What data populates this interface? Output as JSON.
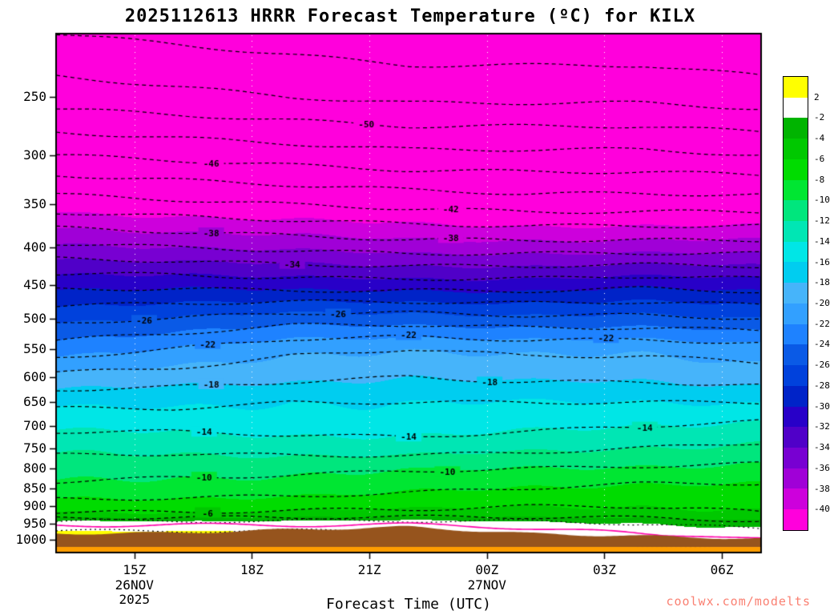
{
  "header": {
    "title": "2025112613 HRRR Forecast Temperature (ºC) for KILX"
  },
  "watermark": {
    "text": "coolwx.com/modelts",
    "color": "#fa8072"
  },
  "chart_data": {
    "type": "filled_contour",
    "title": "2025112613 HRRR Forecast Temperature (ºC) for KILX",
    "xlabel": "Forecast Time (UTC)",
    "x_axis": {
      "range": [
        0,
        18
      ],
      "ticks": [
        {
          "hour": 2,
          "label": "15Z",
          "sub": [
            "26NOV",
            "2025"
          ]
        },
        {
          "hour": 5,
          "label": "18Z",
          "sub": []
        },
        {
          "hour": 8,
          "label": "21Z",
          "sub": []
        },
        {
          "hour": 11,
          "label": "00Z",
          "sub": [
            "27NOV"
          ]
        },
        {
          "hour": 14,
          "label": "03Z",
          "sub": []
        },
        {
          "hour": 17,
          "label": "06Z",
          "sub": []
        }
      ]
    },
    "y_axis": {
      "unit": "hPa",
      "scale": "log",
      "range": [
        205,
        1040
      ],
      "ticks": [
        250,
        300,
        350,
        400,
        450,
        500,
        550,
        600,
        650,
        700,
        750,
        800,
        850,
        900,
        950,
        1000
      ]
    },
    "time_hours": [
      0,
      3,
      6,
      9,
      12,
      15,
      18
    ],
    "pressure_levels": [
      205,
      250,
      300,
      350,
      400,
      450,
      500,
      550,
      600,
      650,
      700,
      750,
      800,
      850,
      900,
      925,
      950,
      975,
      1000,
      1020,
      1040
    ],
    "temperature_grid": [
      [
        -54,
        -51,
        -46,
        -41,
        -35.5,
        -30.5,
        -26.5,
        -23,
        -19.5,
        -16.5,
        -14.5,
        -12.5,
        -11,
        -9.5,
        -7,
        -5.5,
        -0.5,
        2.2,
        3.5,
        4.5,
        5.5
      ],
      [
        -54.5,
        -51.5,
        -46.5,
        -41.5,
        -36,
        -30.5,
        -26,
        -22,
        -19,
        -16.5,
        -14.5,
        -12.5,
        -10.7,
        -9.2,
        -7,
        -5.5,
        -0.5,
        2.4,
        3.8,
        4.8,
        5.8
      ],
      [
        -55,
        -52,
        -47,
        -42,
        -36.5,
        -31,
        -25,
        -20.5,
        -18.5,
        -16,
        -14.8,
        -12.8,
        -10.5,
        -9,
        -6.7,
        -5.2,
        -0.5,
        2.4,
        3.8,
        4.8,
        5.8
      ],
      [
        -55.5,
        -52.5,
        -47.5,
        -42.5,
        -37,
        -31,
        -25,
        -20,
        -18,
        -16,
        -15,
        -13,
        -10.2,
        -8.5,
        -6.5,
        -5,
        -0.3,
        2.2,
        3.5,
        4.5,
        5.5
      ],
      [
        -55.5,
        -52.5,
        -47.5,
        -43,
        -37,
        -31,
        -25.5,
        -20.5,
        -18.5,
        -16,
        -14.5,
        -12.5,
        -10,
        -8,
        -6,
        -4.8,
        -1,
        1,
        2.5,
        3.5,
        4.5
      ],
      [
        -55.5,
        -52.5,
        -47.5,
        -43,
        -37,
        -30.5,
        -25.5,
        -20.5,
        -18.5,
        -16,
        -14,
        -12,
        -9.7,
        -7.5,
        -6,
        -5,
        -2,
        -0.5,
        1,
        2,
        3
      ],
      [
        -56,
        -53,
        -48,
        -43,
        -37,
        -31,
        -26,
        -21,
        -19,
        -16,
        -13.5,
        -11.5,
        -9.5,
        -7.5,
        -6.5,
        -5.8,
        -3,
        -1.5,
        0,
        1,
        2
      ]
    ],
    "surface_pressure": [
      980,
      978,
      968,
      960,
      980,
      988,
      996
    ],
    "below_ground_color": "#96541d",
    "bottom_band": {
      "from_pressure": 1022,
      "color": "#ff9d00"
    },
    "contours": {
      "min": -54,
      "max": 2,
      "step": 2,
      "zero_line_color": "#ff00aa"
    },
    "contour_labels": [
      {
        "level": -50,
        "at": [
          0.44
        ]
      },
      {
        "level": -46,
        "at": [
          0.22
        ]
      },
      {
        "level": -42,
        "at": [
          0.56
        ]
      },
      {
        "level": -38,
        "at": [
          0.22,
          0.56
        ]
      },
      {
        "level": -34,
        "at": [
          0.335
        ]
      },
      {
        "level": -26,
        "at": [
          0.125,
          0.4
        ]
      },
      {
        "level": -22,
        "at": [
          0.215,
          0.5,
          0.78
        ]
      },
      {
        "level": -18,
        "at": [
          0.22,
          0.615
        ]
      },
      {
        "level": -14,
        "at": [
          0.21,
          0.5,
          0.835
        ]
      },
      {
        "level": -10,
        "at": [
          0.21,
          0.555
        ]
      },
      {
        "level": -6,
        "at": [
          0.215
        ]
      }
    ],
    "grid_color": "#ffffff",
    "colorbar": {
      "labels": [
        "2",
        "-2",
        "-4",
        "-6",
        "-8",
        "-10",
        "-12",
        "-14",
        "-16",
        "-18",
        "-20",
        "-22",
        "-24",
        "-26",
        "-28",
        "-30",
        "-32",
        "-34",
        "-36",
        "-38",
        "-40"
      ],
      "colors": [
        "#ffff00",
        "#ffffff",
        "#00b400",
        "#00c800",
        "#00dc00",
        "#00e632",
        "#00e67d",
        "#00e6b4",
        "#00e6e6",
        "#00cdf0",
        "#46b4fa",
        "#32a0ff",
        "#1e82ff",
        "#0a5ae6",
        "#0041dc",
        "#0023c8",
        "#2800c8",
        "#5000c8",
        "#7800d2",
        "#a000d7",
        "#cd00dc",
        "#ff00dc"
      ]
    }
  }
}
